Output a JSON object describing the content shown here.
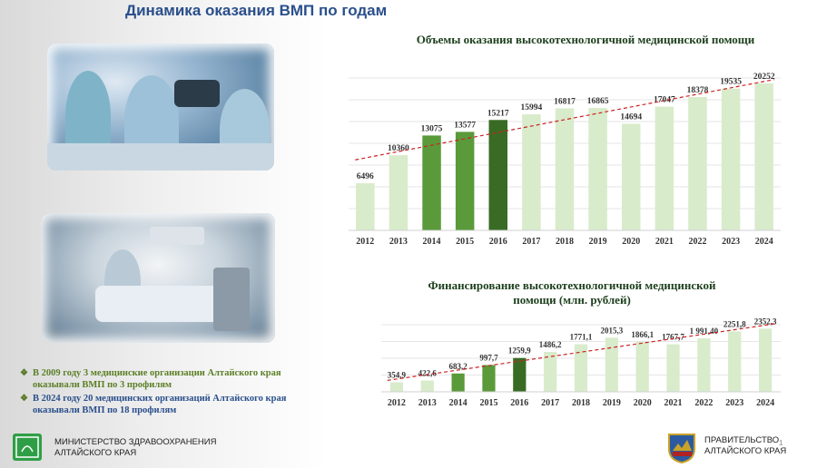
{
  "slide": {
    "title": "Динамика оказания ВМП по годам",
    "page_number": "1"
  },
  "colors": {
    "bar_light": "#d8ebcb",
    "bar_mid": "#5a9a3a",
    "bar_dark": "#3a6b25",
    "trend": "#cc2222",
    "title": "#2a4f8c"
  },
  "chart_data": [
    {
      "type": "bar",
      "title": "Объемы оказания высокотехнологичной медицинской помощи",
      "categories": [
        "2012",
        "2013",
        "2014",
        "2015",
        "2016",
        "2017",
        "2018",
        "2019",
        "2020",
        "2021",
        "2022",
        "2023",
        "2024"
      ],
      "values": [
        6496,
        10360,
        13075,
        13577,
        15217,
        15994,
        16817,
        16865,
        14694,
        17047,
        18378,
        19535,
        20252
      ],
      "labels": [
        "6496",
        "10360",
        "13075",
        "13577",
        "15217",
        "15994",
        "16817",
        "16865",
        "14694",
        "17047",
        "18378",
        "19535",
        "20252"
      ],
      "highlight": {
        "2014": "mid",
        "2015": "mid",
        "2016": "dark"
      },
      "trendline": true,
      "ylim": [
        0,
        21000
      ]
    },
    {
      "type": "bar",
      "title": "Финансирование высокотехнологичной медицинской помощи (млн. рублей)",
      "title_lines": [
        "Финансирование высокотехнологичной медицинской",
        "помощи (млн. рублей)"
      ],
      "categories": [
        "2012",
        "2013",
        "2014",
        "2015",
        "2016",
        "2017",
        "2018",
        "2019",
        "2020",
        "2021",
        "2022",
        "2023",
        "2024"
      ],
      "values": [
        354.9,
        422.6,
        683.2,
        997.7,
        1259.9,
        1486.2,
        1771.1,
        2015.3,
        1866.1,
        1767.7,
        1991.4,
        2251.8,
        2352.3
      ],
      "labels": [
        "354,9",
        "422,6",
        "683,2",
        "997,7",
        "1259,9",
        "1486,2",
        "1771,1",
        "2015,3",
        "1866,1",
        "1767,7",
        "1 991,40",
        "2251,8",
        "2352,3"
      ],
      "highlight": {
        "2014": "mid",
        "2015": "mid",
        "2016": "dark"
      },
      "trendline": true,
      "ylim": [
        0,
        2500
      ]
    }
  ],
  "bullets": [
    "В 2009 году 3 медицинские организации Алтайского края оказывали ВМП по 3 профилям",
    "В 2024 году 20 медицинских организаций Алтайского края оказывали ВМП по 18 профилям"
  ],
  "footer": {
    "ministry_line1": "МИНИСТЕРСТВО ЗДРАВООХРАНЕНИЯ",
    "ministry_line2": "АЛТАЙСКОГО КРАЯ",
    "gov_line1": "ПРАВИТЕЛЬСТВО",
    "gov_line2": "АЛТАЙСКОГО КРАЯ"
  }
}
